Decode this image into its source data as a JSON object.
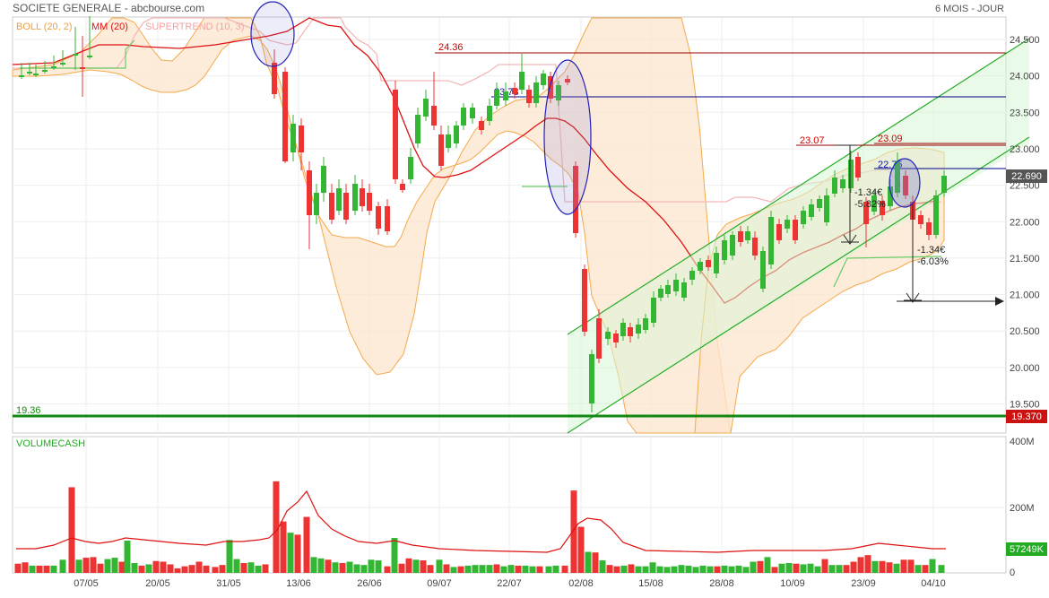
{
  "header": {
    "title": "SOCIETE GENERALE - abcbourse.com",
    "period": "6 MOIS - JOUR"
  },
  "indicators": {
    "boll": "BOLL (20, 2)",
    "mm": "MM (20)",
    "supertrend": "SUPERTREND (10, 3)"
  },
  "volume": {
    "label": "VOLUMECASH",
    "last_value_label": "57249K"
  },
  "colors": {
    "up": "#33b633",
    "down": "#ee3333",
    "mm": "#dd1111",
    "bollinger_fill": "#fde6cf",
    "bollinger_line": "#f3a94a",
    "supertrend": "#f4b9b9",
    "channel": "#22aa22",
    "support": "#118811",
    "resistance": "#990000",
    "blue_level": "#000088"
  },
  "chart_data": [
    {
      "type": "candlestick",
      "title": "SOCIETE GENERALE",
      "ylim": [
        19.0,
        24.75
      ],
      "y_ticks": [
        "24.500",
        "24.000",
        "23.500",
        "23.000",
        "22.500",
        "22.000",
        "21.500",
        "21.000",
        "20.500",
        "20.000",
        "19.500"
      ],
      "x_ticks": [
        "07/05",
        "20/05",
        "31/05",
        "13/06",
        "26/06",
        "09/07",
        "22/07",
        "02/08",
        "15/08",
        "28/08",
        "10/09",
        "23/09",
        "04/10"
      ],
      "last_price": "22.690",
      "support_label": "19.370",
      "annotations": {
        "support_level": "19.36",
        "high_1": "24.36",
        "high_2": "23.73",
        "level_1": "23.07",
        "level_2": "23.09",
        "level_3": "22.75",
        "drop_1_abs": "-1.34€",
        "drop_1_pct": "-5.82%",
        "drop_2_abs": "-1.34€",
        "drop_2_pct": "-6.03%"
      }
    },
    {
      "type": "bar",
      "title": "VOLUMECASH",
      "y_ticks": [
        "400M",
        "200M",
        "0"
      ],
      "ylim": [
        0,
        400
      ],
      "unit": "M"
    }
  ]
}
